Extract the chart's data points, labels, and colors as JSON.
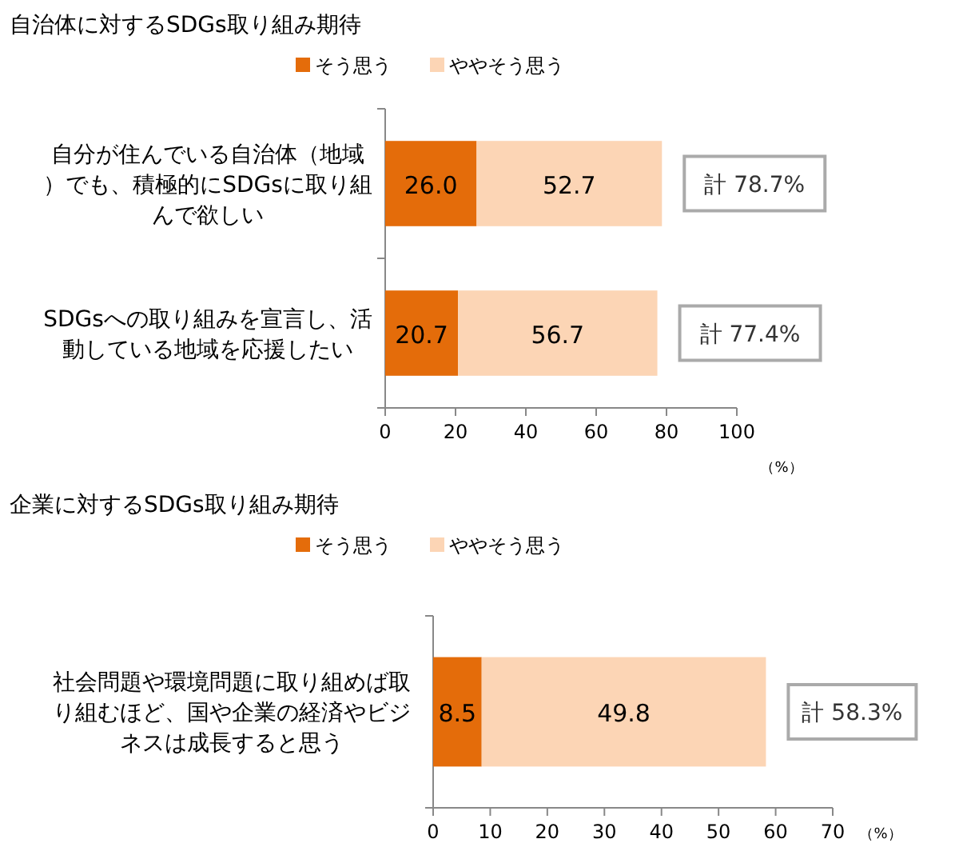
{
  "chart_data": [
    {
      "type": "bar",
      "orientation": "horizontal",
      "stacked": true,
      "title": "自治体に対するSDGs取り組み期待",
      "xlabel": "（%）",
      "legend": "top",
      "categories": [
        "自分が住んでいる自治体（地域）でも、積極的にSDGsに取り組んで欲しい",
        "SDGsへの取り組みを宣言し、活動している地域を応援したい"
      ],
      "xlim": [
        0,
        100
      ],
      "xticks": [
        0,
        20,
        40,
        60,
        80,
        100
      ],
      "series": [
        {
          "name": "そう思う",
          "color": "#e46c0a",
          "values": [
            26.0,
            20.7
          ],
          "value_labels": [
            "26.0",
            "20.7"
          ]
        },
        {
          "name": "ややそう思う",
          "color": "#fcd5b5",
          "values": [
            52.7,
            56.7
          ],
          "value_labels": [
            "52.7",
            "56.7"
          ]
        }
      ],
      "totals": [
        "計 78.7%",
        "計 77.4%"
      ]
    },
    {
      "type": "bar",
      "orientation": "horizontal",
      "stacked": true,
      "title": "企業に対するSDGs取り組み期待",
      "xlabel": "（%）",
      "legend": "top",
      "categories": [
        "社会問題や環境問題に取り組めば取り組むほど、国や企業の経済やビジネスは成長すると思う"
      ],
      "xlim": [
        0,
        70
      ],
      "xticks": [
        0,
        10,
        20,
        30,
        40,
        50,
        60,
        70
      ],
      "series": [
        {
          "name": "そう思う",
          "color": "#e46c0a",
          "values": [
            8.5
          ],
          "value_labels": [
            "8.5"
          ]
        },
        {
          "name": "ややそう思う",
          "color": "#fcd5b5",
          "values": [
            49.8
          ],
          "value_labels": [
            "49.8"
          ]
        }
      ],
      "totals": [
        "計 58.3%"
      ]
    }
  ]
}
